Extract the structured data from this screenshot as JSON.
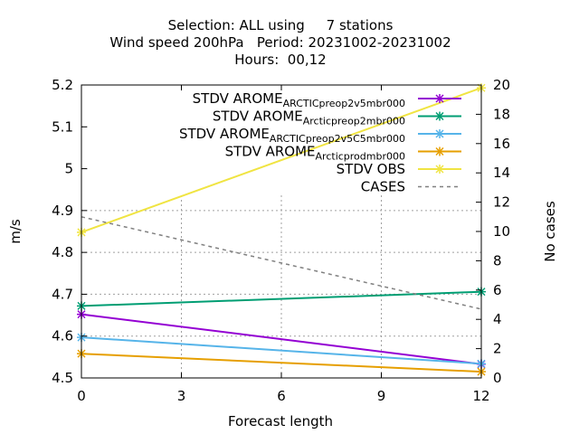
{
  "title_lines": [
    "Selection: ALL using     7 stations",
    "Wind speed 200hPa   Period: 20231002-20231002",
    "Hours:  00,12"
  ],
  "chart_data": {
    "type": "line",
    "xlabel": "Forecast length",
    "ylabel": "m/s",
    "y2label": "No cases",
    "xlim": [
      0,
      12
    ],
    "ylim": [
      4.5,
      5.2
    ],
    "y2lim": [
      0,
      20
    ],
    "xticks": [
      0,
      3,
      6,
      9,
      12
    ],
    "yticks": [
      4.5,
      4.6,
      4.7,
      4.8,
      4.9,
      5,
      5.1,
      5.2
    ],
    "y2ticks": [
      0,
      2,
      4,
      6,
      8,
      10,
      12,
      14,
      16,
      18,
      20
    ],
    "grid": true,
    "legend_position": "top-right",
    "series": [
      {
        "name": "STDV AROME_ARCTIC_preop2_v5mbr000",
        "label_parts": [
          "STDV AROME",
          "A",
          "RCTIC",
          "p",
          "reop2",
          "v",
          "5mbr000"
        ],
        "color": "#9400d3",
        "marker": "x",
        "axis": "y",
        "x": [
          0,
          12
        ],
        "values": [
          4.652,
          4.533
        ]
      },
      {
        "name": "STDV AROME_Arctic_preop2mbr000",
        "label_parts": [
          "STDV AROME",
          "A",
          "rctic",
          "p",
          "reop2mbr000"
        ],
        "color": "#009e73",
        "marker": "x",
        "axis": "y",
        "x": [
          0,
          12
        ],
        "values": [
          4.672,
          4.706
        ]
      },
      {
        "name": "STDV AROME_ARCTIC_preop2_v5_C5mbr000",
        "label_parts": [
          "STDV AROME",
          "A",
          "RCTIC",
          "p",
          "reop2",
          "v",
          "5",
          "C",
          "5mbr000"
        ],
        "color": "#56b4e9",
        "marker": "x",
        "axis": "y",
        "x": [
          0,
          12
        ],
        "values": [
          4.597,
          4.534
        ]
      },
      {
        "name": "STDV AROME_Arctic_prodmbr000",
        "label_parts": [
          "STDV AROME",
          "A",
          "rctic",
          "p",
          "rodmbr000"
        ],
        "color": "#e69f00",
        "marker": "x",
        "axis": "y",
        "x": [
          0,
          12
        ],
        "values": [
          4.558,
          4.515
        ]
      },
      {
        "name": "STDV OBS",
        "label_parts": [
          "STDV OBS"
        ],
        "color": "#f0e442",
        "marker": "x",
        "axis": "y",
        "x": [
          0,
          12
        ],
        "values": [
          4.848,
          5.193
        ]
      },
      {
        "name": "CASES",
        "label_parts": [
          "CASES"
        ],
        "color": "#808080",
        "marker": "none",
        "dashed": true,
        "axis": "y2",
        "x": [
          0,
          12
        ],
        "values": [
          11,
          4.7
        ]
      }
    ]
  }
}
